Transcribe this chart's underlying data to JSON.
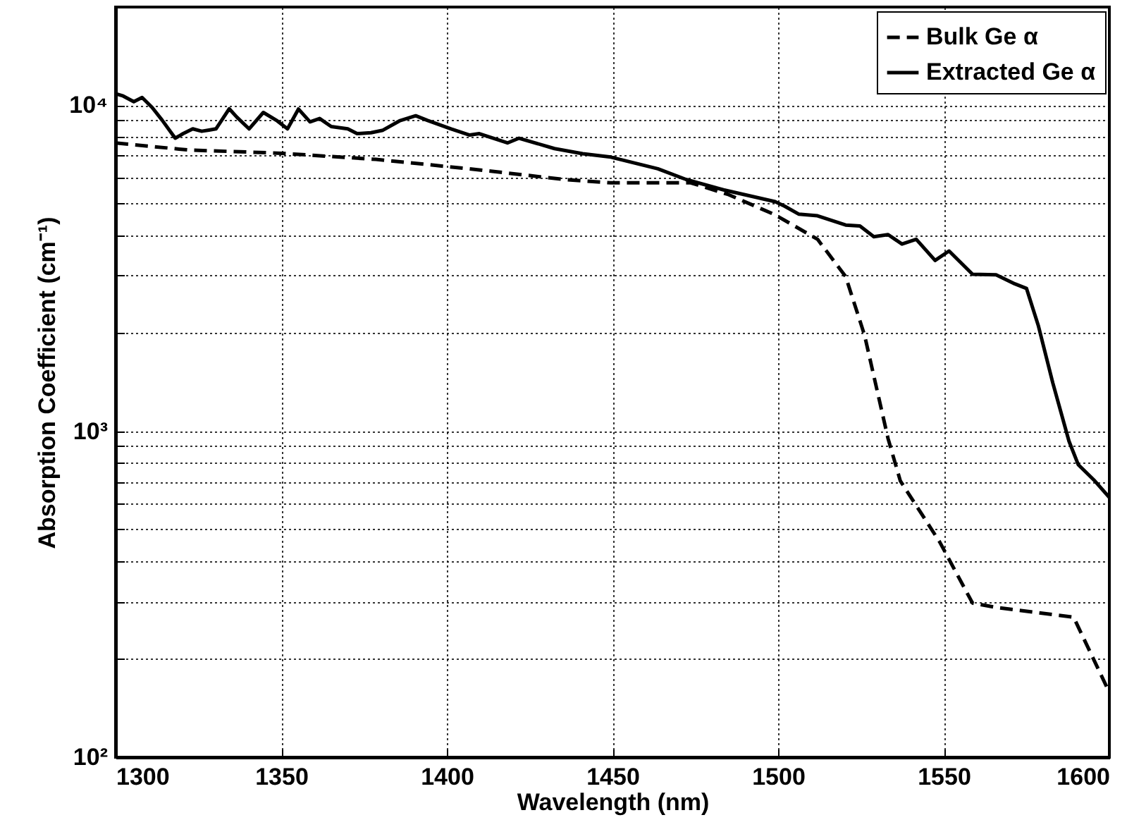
{
  "chart_data": {
    "type": "line",
    "xlabel": "Wavelength (nm)",
    "ylabel": "Absorption Coefficient (cm⁻¹)",
    "log": "y",
    "grid": true,
    "legend": "top right",
    "xlim": [
      1300,
      1600
    ],
    "xticks": [
      1300,
      1350,
      1400,
      1450,
      1500,
      1550,
      1600
    ],
    "ylim": [
      100,
      20000
    ],
    "yticks": [
      {
        "value": 100,
        "label": "10²"
      },
      {
        "value": 200,
        "label": null
      },
      {
        "value": 300,
        "label": null
      },
      {
        "value": 400,
        "label": null
      },
      {
        "value": 500,
        "label": null
      },
      {
        "value": 600,
        "label": null
      },
      {
        "value": 700,
        "label": null
      },
      {
        "value": 800,
        "label": null
      },
      {
        "value": 900,
        "label": null
      },
      {
        "value": 1000,
        "label": "10³"
      },
      {
        "value": 2000,
        "label": null
      },
      {
        "value": 3000,
        "label": null
      },
      {
        "value": 4000,
        "label": null
      },
      {
        "value": 5000,
        "label": null
      },
      {
        "value": 6000,
        "label": null
      },
      {
        "value": 7000,
        "label": null
      },
      {
        "value": 8000,
        "label": null
      },
      {
        "value": 9000,
        "label": null
      },
      {
        "value": 10000,
        "label": "10⁴"
      }
    ],
    "series": [
      {
        "name": "Bulk Ge α",
        "color": "#000000",
        "line_style": "dashed",
        "x": [
          1300,
          1321.8,
          1350.2,
          1378.6,
          1406.9,
          1435.3,
          1449.5,
          1473.6,
          1485,
          1499.1,
          1511.9,
          1520.4,
          1526.1,
          1533.2,
          1536.9,
          1548.8,
          1558.7,
          1565.8,
          1589.2,
          1600
        ],
        "values": [
          7660,
          7290,
          7120,
          6820,
          6380,
          5920,
          5780,
          5780,
          5320,
          4610,
          3880,
          2980,
          1970,
          949,
          704,
          457,
          297,
          288,
          269,
          158
        ]
      },
      {
        "name": "Extracted Ge α",
        "color": "#000000",
        "line_style": "solid",
        "x": [
          1300,
          1302.3,
          1305.5,
          1308,
          1311,
          1314,
          1318,
          1320.4,
          1323.3,
          1326,
          1328.2,
          1330.3,
          1334.3,
          1336.6,
          1340.3,
          1344.6,
          1348.8,
          1351.9,
          1355.2,
          1358.7,
          1361.6,
          1365.1,
          1370.1,
          1372.9,
          1377.1,
          1380.7,
          1385.7,
          1390.6,
          1394.2,
          1401.3,
          1406.9,
          1409.8,
          1418.3,
          1421.8,
          1432.5,
          1441,
          1449.5,
          1463.7,
          1472.2,
          1483.5,
          1499.1,
          1502,
          1506.3,
          1511.9,
          1520.4,
          1524.7,
          1528.9,
          1533.2,
          1537.4,
          1541.7,
          1547.4,
          1551.6,
          1558.7,
          1565.8,
          1571.5,
          1575,
          1578.6,
          1582.9,
          1587.8,
          1590.6,
          1595.6,
          1600
        ],
        "values": [
          10850,
          10670,
          10250,
          10560,
          9850,
          9010,
          7920,
          8180,
          8460,
          8320,
          8390,
          8460,
          9750,
          9190,
          8460,
          9500,
          8950,
          8460,
          9730,
          8890,
          9100,
          8600,
          8460,
          8180,
          8230,
          8380,
          8950,
          9280,
          8980,
          8460,
          8100,
          8180,
          7660,
          7920,
          7360,
          7100,
          6930,
          6380,
          5920,
          5500,
          5060,
          4900,
          4630,
          4580,
          4290,
          4260,
          3950,
          4010,
          3750,
          3880,
          3340,
          3570,
          3030,
          3020,
          2830,
          2740,
          2100,
          1410,
          933,
          790,
          704,
          626
        ]
      }
    ]
  }
}
